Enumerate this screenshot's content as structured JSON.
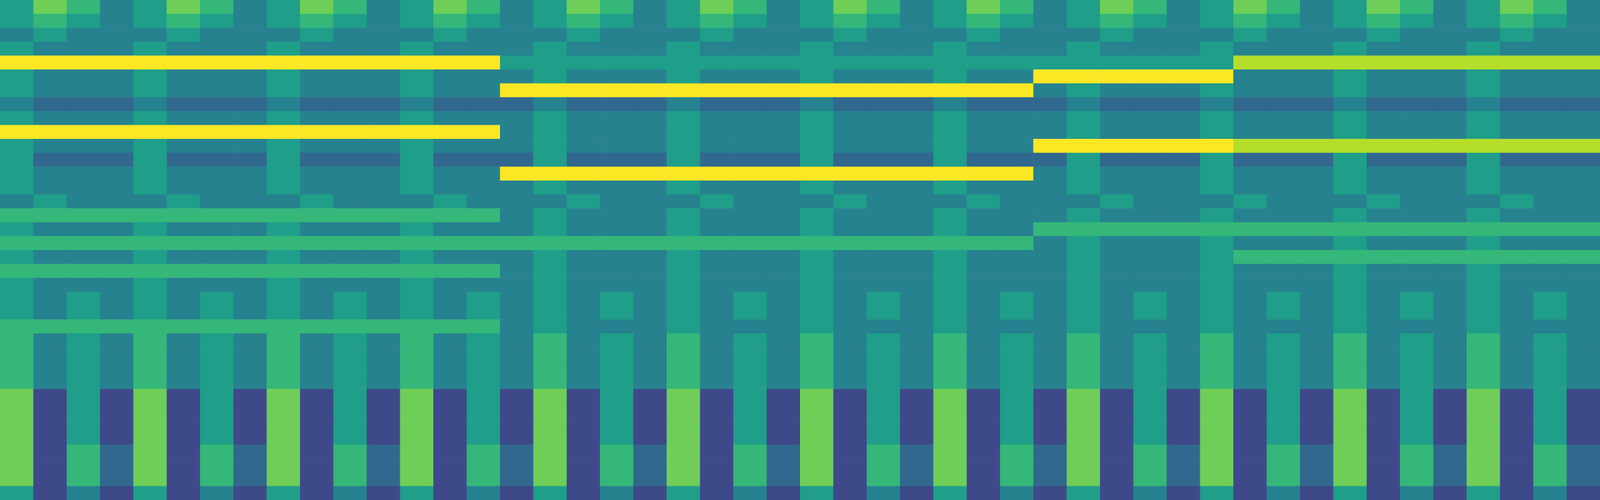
{
  "chart_data": {
    "type": "heatmap",
    "tick_labels": false,
    "zlim": [
      0,
      9
    ],
    "z": [
      [
        5,
        7,
        6,
        4,
        5,
        7,
        6,
        4,
        5,
        7,
        6,
        4,
        5,
        7,
        6,
        4,
        5,
        7,
        6,
        4,
        5,
        7,
        6,
        4,
        5,
        7,
        6,
        4,
        5,
        7,
        6,
        4,
        5,
        7,
        6,
        4,
        5,
        7,
        6,
        4,
        5,
        7,
        6,
        4,
        5,
        7,
        6,
        4
      ],
      [
        5,
        6,
        5,
        4,
        5,
        6,
        5,
        4,
        5,
        6,
        5,
        4,
        5,
        6,
        5,
        4,
        5,
        6,
        5,
        4,
        5,
        6,
        5,
        4,
        5,
        6,
        5,
        4,
        5,
        6,
        5,
        4,
        5,
        6,
        5,
        4,
        5,
        6,
        5,
        4,
        5,
        6,
        5,
        4,
        5,
        6,
        5,
        4
      ],
      [
        4,
        5,
        4,
        4,
        4,
        5,
        4,
        4,
        4,
        5,
        4,
        4,
        4,
        5,
        4,
        4,
        4,
        5,
        4,
        4,
        4,
        5,
        4,
        4,
        4,
        5,
        4,
        4,
        4,
        5,
        4,
        4,
        4,
        5,
        4,
        4,
        4,
        5,
        4,
        4,
        4,
        5,
        4,
        4,
        4,
        5,
        4,
        4
      ],
      [
        5,
        4,
        4,
        4,
        5,
        4,
        4,
        4,
        5,
        4,
        4,
        4,
        5,
        4,
        4,
        4,
        5,
        4,
        4,
        4,
        5,
        4,
        4,
        4,
        5,
        4,
        4,
        4,
        5,
        4,
        4,
        4,
        5,
        4,
        4,
        4,
        5,
        4,
        4,
        4,
        5,
        4,
        4,
        4,
        5,
        4,
        4,
        4
      ],
      [
        9,
        9,
        9,
        9,
        9,
        9,
        9,
        9,
        9,
        9,
        9,
        9,
        9,
        9,
        9,
        5,
        5,
        5,
        5,
        5,
        5,
        5,
        5,
        5,
        5,
        5,
        5,
        5,
        5,
        5,
        5,
        5,
        5,
        5,
        5,
        5,
        5,
        8,
        8,
        8,
        8,
        8,
        8,
        8,
        8,
        8,
        8,
        8
      ],
      [
        5,
        4,
        4,
        4,
        5,
        4,
        4,
        4,
        5,
        4,
        4,
        4,
        5,
        4,
        4,
        4,
        5,
        4,
        4,
        4,
        5,
        4,
        4,
        4,
        5,
        4,
        4,
        4,
        5,
        4,
        4,
        9,
        9,
        9,
        9,
        9,
        9,
        4,
        4,
        4,
        5,
        4,
        4,
        4,
        5,
        4,
        4,
        4
      ],
      [
        5,
        4,
        4,
        4,
        5,
        4,
        4,
        4,
        5,
        4,
        4,
        4,
        5,
        4,
        4,
        9,
        9,
        9,
        9,
        9,
        9,
        9,
        9,
        9,
        9,
        9,
        9,
        9,
        9,
        9,
        9,
        4,
        5,
        4,
        4,
        4,
        5,
        4,
        4,
        4,
        5,
        4,
        4,
        4,
        5,
        4,
        4,
        4
      ],
      [
        4,
        3,
        3,
        3,
        4,
        3,
        3,
        3,
        4,
        3,
        3,
        3,
        4,
        3,
        3,
        3,
        4,
        3,
        3,
        3,
        4,
        3,
        3,
        3,
        4,
        3,
        3,
        3,
        4,
        3,
        3,
        3,
        4,
        3,
        3,
        3,
        4,
        3,
        3,
        3,
        4,
        3,
        3,
        3,
        4,
        3,
        3,
        3
      ],
      [
        5,
        4,
        4,
        4,
        5,
        4,
        4,
        4,
        5,
        4,
        4,
        4,
        5,
        4,
        4,
        4,
        5,
        4,
        4,
        4,
        5,
        4,
        4,
        4,
        5,
        4,
        4,
        4,
        5,
        4,
        4,
        4,
        5,
        4,
        4,
        4,
        5,
        4,
        4,
        4,
        5,
        4,
        4,
        4,
        5,
        4,
        4,
        4
      ],
      [
        9,
        9,
        9,
        9,
        9,
        9,
        9,
        9,
        9,
        9,
        9,
        9,
        9,
        9,
        9,
        4,
        5,
        4,
        4,
        4,
        5,
        4,
        4,
        4,
        5,
        4,
        4,
        4,
        5,
        4,
        4,
        4,
        5,
        4,
        4,
        4,
        5,
        4,
        4,
        4,
        5,
        4,
        4,
        4,
        5,
        4,
        4,
        4
      ],
      [
        5,
        4,
        4,
        4,
        5,
        4,
        4,
        4,
        5,
        4,
        4,
        4,
        5,
        4,
        4,
        4,
        5,
        4,
        4,
        4,
        5,
        4,
        4,
        4,
        5,
        4,
        4,
        4,
        5,
        4,
        4,
        9,
        9,
        9,
        9,
        9,
        9,
        8,
        8,
        8,
        8,
        8,
        8,
        8,
        8,
        8,
        8,
        8
      ],
      [
        5,
        3,
        3,
        3,
        5,
        3,
        3,
        3,
        5,
        3,
        3,
        3,
        5,
        3,
        3,
        3,
        5,
        3,
        3,
        3,
        5,
        3,
        3,
        3,
        5,
        3,
        3,
        3,
        5,
        3,
        3,
        3,
        5,
        3,
        3,
        3,
        5,
        3,
        3,
        3,
        5,
        3,
        3,
        3,
        5,
        3,
        3,
        3
      ],
      [
        5,
        4,
        4,
        4,
        5,
        4,
        4,
        4,
        5,
        4,
        4,
        4,
        5,
        4,
        4,
        9,
        9,
        9,
        9,
        9,
        9,
        9,
        9,
        9,
        9,
        9,
        9,
        9,
        9,
        9,
        9,
        4,
        5,
        4,
        4,
        4,
        5,
        4,
        4,
        4,
        5,
        4,
        4,
        4,
        5,
        4,
        4,
        4
      ],
      [
        5,
        4,
        4,
        4,
        5,
        4,
        4,
        4,
        5,
        4,
        4,
        4,
        5,
        4,
        4,
        4,
        5,
        4,
        4,
        4,
        5,
        4,
        4,
        4,
        5,
        4,
        4,
        4,
        5,
        4,
        4,
        4,
        5,
        4,
        4,
        4,
        5,
        4,
        4,
        4,
        5,
        4,
        4,
        4,
        5,
        4,
        4,
        4
      ],
      [
        4,
        5,
        4,
        4,
        4,
        5,
        4,
        4,
        4,
        5,
        4,
        4,
        4,
        5,
        4,
        4,
        4,
        5,
        4,
        4,
        4,
        5,
        4,
        4,
        4,
        5,
        4,
        4,
        4,
        5,
        4,
        4,
        4,
        5,
        4,
        4,
        4,
        5,
        4,
        4,
        4,
        5,
        4,
        4,
        4,
        5,
        4,
        4
      ],
      [
        6,
        6,
        6,
        6,
        6,
        6,
        6,
        6,
        6,
        6,
        6,
        6,
        6,
        6,
        6,
        4,
        5,
        4,
        4,
        4,
        5,
        4,
        4,
        4,
        5,
        4,
        4,
        4,
        5,
        4,
        4,
        4,
        5,
        4,
        4,
        4,
        5,
        4,
        4,
        4,
        5,
        4,
        4,
        4,
        5,
        4,
        4,
        4
      ],
      [
        5,
        4,
        4,
        4,
        5,
        4,
        4,
        4,
        5,
        4,
        4,
        4,
        5,
        4,
        4,
        4,
        5,
        4,
        4,
        4,
        5,
        4,
        4,
        4,
        5,
        4,
        4,
        4,
        5,
        4,
        4,
        6,
        6,
        6,
        6,
        6,
        6,
        6,
        6,
        6,
        6,
        6,
        6,
        6,
        6,
        6,
        6,
        6
      ],
      [
        6,
        6,
        6,
        6,
        6,
        6,
        6,
        6,
        6,
        6,
        6,
        6,
        6,
        6,
        6,
        6,
        6,
        6,
        6,
        6,
        6,
        6,
        6,
        6,
        6,
        6,
        6,
        6,
        6,
        6,
        6,
        4,
        5,
        4,
        4,
        4,
        5,
        4,
        4,
        4,
        5,
        4,
        4,
        4,
        5,
        4,
        4,
        4
      ],
      [
        5,
        4,
        4,
        4,
        5,
        4,
        4,
        4,
        5,
        4,
        4,
        4,
        5,
        4,
        4,
        4,
        5,
        4,
        4,
        4,
        5,
        4,
        4,
        4,
        5,
        4,
        4,
        4,
        5,
        4,
        4,
        4,
        5,
        4,
        4,
        4,
        5,
        6,
        6,
        6,
        6,
        6,
        6,
        6,
        6,
        6,
        6,
        6
      ],
      [
        6,
        6,
        6,
        6,
        6,
        6,
        6,
        6,
        6,
        6,
        6,
        6,
        6,
        6,
        6,
        4,
        5,
        4,
        4,
        4,
        5,
        4,
        4,
        4,
        5,
        4,
        4,
        4,
        5,
        4,
        4,
        4,
        5,
        4,
        4,
        4,
        5,
        4,
        4,
        4,
        5,
        4,
        4,
        4,
        5,
        4,
        4,
        4
      ],
      [
        5,
        4,
        4,
        4,
        5,
        4,
        4,
        4,
        5,
        4,
        4,
        4,
        5,
        4,
        4,
        4,
        5,
        4,
        4,
        4,
        5,
        4,
        4,
        4,
        5,
        4,
        4,
        4,
        5,
        4,
        4,
        4,
        5,
        4,
        4,
        4,
        5,
        4,
        4,
        4,
        5,
        4,
        4,
        4,
        5,
        4,
        4,
        4
      ],
      [
        5,
        4,
        5,
        4,
        5,
        4,
        5,
        4,
        5,
        4,
        5,
        4,
        5,
        4,
        5,
        4,
        5,
        4,
        5,
        4,
        5,
        4,
        5,
        4,
        5,
        4,
        5,
        4,
        5,
        4,
        5,
        4,
        5,
        4,
        5,
        4,
        5,
        4,
        5,
        4,
        5,
        4,
        5,
        4,
        5,
        4,
        5,
        4
      ],
      [
        5,
        4,
        5,
        4,
        5,
        4,
        5,
        4,
        5,
        4,
        5,
        4,
        5,
        4,
        5,
        4,
        5,
        4,
        5,
        4,
        5,
        4,
        5,
        4,
        5,
        4,
        5,
        4,
        5,
        4,
        5,
        4,
        5,
        4,
        5,
        4,
        5,
        4,
        5,
        4,
        5,
        4,
        5,
        4,
        5,
        4,
        5,
        4
      ],
      [
        6,
        6,
        6,
        6,
        6,
        6,
        6,
        6,
        6,
        6,
        6,
        6,
        6,
        6,
        6,
        4,
        5,
        4,
        4,
        4,
        5,
        4,
        4,
        4,
        5,
        4,
        4,
        4,
        5,
        4,
        4,
        4,
        5,
        4,
        4,
        4,
        5,
        4,
        4,
        4,
        5,
        4,
        4,
        4,
        5,
        4,
        4,
        4
      ],
      [
        6,
        4,
        5,
        4,
        6,
        4,
        5,
        4,
        6,
        4,
        5,
        4,
        6,
        4,
        5,
        4,
        6,
        4,
        5,
        4,
        6,
        4,
        5,
        4,
        6,
        4,
        5,
        4,
        6,
        4,
        5,
        4,
        6,
        4,
        5,
        4,
        6,
        4,
        5,
        4,
        6,
        4,
        5,
        4,
        6,
        4,
        5,
        4
      ],
      [
        6,
        4,
        5,
        4,
        6,
        4,
        5,
        4,
        6,
        4,
        5,
        4,
        6,
        4,
        5,
        4,
        6,
        4,
        5,
        4,
        6,
        4,
        5,
        4,
        6,
        4,
        5,
        4,
        6,
        4,
        5,
        4,
        6,
        4,
        5,
        4,
        6,
        4,
        5,
        4,
        6,
        4,
        5,
        4,
        6,
        4,
        5,
        4
      ],
      [
        6,
        4,
        5,
        4,
        6,
        4,
        5,
        4,
        6,
        4,
        5,
        4,
        6,
        4,
        5,
        4,
        6,
        4,
        5,
        4,
        6,
        4,
        5,
        4,
        6,
        4,
        5,
        4,
        6,
        4,
        5,
        4,
        6,
        4,
        5,
        4,
        6,
        4,
        5,
        4,
        6,
        4,
        5,
        4,
        6,
        4,
        5,
        4
      ],
      [
        6,
        4,
        5,
        4,
        6,
        4,
        5,
        4,
        6,
        4,
        5,
        4,
        6,
        4,
        5,
        4,
        6,
        4,
        5,
        4,
        6,
        4,
        5,
        4,
        6,
        4,
        5,
        4,
        6,
        4,
        5,
        4,
        6,
        4,
        5,
        4,
        6,
        4,
        5,
        4,
        6,
        4,
        5,
        4,
        6,
        4,
        5,
        4
      ],
      [
        7,
        2,
        5,
        2,
        7,
        2,
        5,
        2,
        7,
        2,
        5,
        2,
        7,
        2,
        5,
        2,
        7,
        2,
        5,
        2,
        7,
        2,
        5,
        2,
        7,
        2,
        5,
        2,
        7,
        2,
        5,
        2,
        7,
        2,
        5,
        2,
        7,
        2,
        5,
        2,
        7,
        2,
        5,
        2,
        7,
        2,
        5,
        2
      ],
      [
        7,
        2,
        5,
        2,
        7,
        2,
        5,
        2,
        7,
        2,
        5,
        2,
        7,
        2,
        5,
        2,
        7,
        2,
        5,
        2,
        7,
        2,
        5,
        2,
        7,
        2,
        5,
        2,
        7,
        2,
        5,
        2,
        7,
        2,
        5,
        2,
        7,
        2,
        5,
        2,
        7,
        2,
        5,
        2,
        7,
        2,
        5,
        2
      ],
      [
        7,
        2,
        5,
        2,
        7,
        2,
        5,
        2,
        7,
        2,
        5,
        2,
        7,
        2,
        5,
        2,
        7,
        2,
        5,
        2,
        7,
        2,
        5,
        2,
        7,
        2,
        5,
        2,
        7,
        2,
        5,
        2,
        7,
        2,
        5,
        2,
        7,
        2,
        5,
        2,
        7,
        2,
        5,
        2,
        7,
        2,
        5,
        2
      ],
      [
        7,
        2,
        5,
        2,
        7,
        2,
        5,
        2,
        7,
        2,
        5,
        2,
        7,
        2,
        5,
        2,
        7,
        2,
        5,
        2,
        7,
        2,
        5,
        2,
        7,
        2,
        5,
        2,
        7,
        2,
        5,
        2,
        7,
        2,
        5,
        2,
        7,
        2,
        5,
        2,
        7,
        2,
        5,
        2,
        7,
        2,
        5,
        2
      ],
      [
        7,
        2,
        6,
        3,
        7,
        2,
        6,
        3,
        7,
        2,
        6,
        3,
        7,
        2,
        6,
        3,
        7,
        2,
        6,
        3,
        7,
        2,
        6,
        3,
        7,
        2,
        6,
        3,
        7,
        2,
        6,
        3,
        7,
        2,
        6,
        3,
        7,
        2,
        6,
        3,
        7,
        2,
        6,
        3,
        7,
        2,
        6,
        3
      ],
      [
        7,
        2,
        6,
        3,
        7,
        2,
        6,
        3,
        7,
        2,
        6,
        3,
        7,
        2,
        6,
        3,
        7,
        2,
        6,
        3,
        7,
        2,
        6,
        3,
        7,
        2,
        6,
        3,
        7,
        2,
        6,
        3,
        7,
        2,
        6,
        3,
        7,
        2,
        6,
        3,
        7,
        2,
        6,
        3,
        7,
        2,
        6,
        3
      ],
      [
        7,
        2,
        6,
        3,
        7,
        2,
        6,
        3,
        7,
        2,
        6,
        3,
        7,
        2,
        6,
        3,
        7,
        2,
        6,
        3,
        7,
        2,
        6,
        3,
        7,
        2,
        6,
        3,
        7,
        2,
        6,
        3,
        7,
        2,
        6,
        3,
        7,
        2,
        6,
        3,
        7,
        2,
        6,
        3,
        7,
        2,
        6,
        3
      ],
      [
        5,
        2,
        4,
        2,
        5,
        2,
        4,
        2,
        5,
        2,
        4,
        2,
        5,
        2,
        4,
        2,
        5,
        2,
        4,
        2,
        5,
        2,
        4,
        2,
        5,
        2,
        4,
        2,
        5,
        2,
        4,
        2,
        5,
        2,
        4,
        2,
        5,
        2,
        4,
        2,
        5,
        2,
        4,
        2,
        5,
        2,
        4,
        2
      ]
    ]
  }
}
